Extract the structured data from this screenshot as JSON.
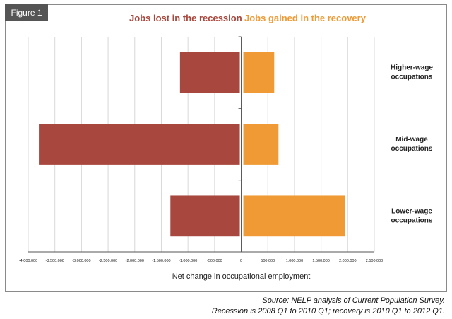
{
  "figure_label": "Figure 1",
  "legend": {
    "loss_label": "Jobs lost in the recession",
    "gain_label": "Jobs gained in the recovery"
  },
  "source_lines": [
    "Source: NELP analysis of Current Population Survey.",
    "Recession is 2008 Q1 to 2010 Q1; recovery is 2010 Q1 to 2012 Q1."
  ],
  "colors": {
    "loss": "#a8473d",
    "gain": "#ef9a34",
    "loss_text": "#a8473d",
    "gain_text": "#ef9a34",
    "grid": "#d8d8d8",
    "axis": "#555555",
    "tab": "#555555"
  },
  "chart_data": {
    "type": "bar",
    "orientation": "horizontal",
    "xlabel": "Net change in occupational employment",
    "xlim": [
      -4000000,
      2500000
    ],
    "xticks": [
      -4000000,
      -3500000,
      -3000000,
      -2500000,
      -2000000,
      -1500000,
      -1000000,
      -500000,
      0,
      500000,
      1000000,
      1500000,
      2000000,
      2500000
    ],
    "xtick_labels": [
      "-4,000,000",
      "-3,500,000",
      "-3,000,000",
      "-2,500,000",
      "-2,000,000",
      "-1,500,000",
      "-1,000,000",
      "-500,000",
      "0",
      "500,000",
      "1,000,000",
      "1,500,000",
      "2,000,000",
      "2,500,000"
    ],
    "categories": [
      [
        "Higher-wage",
        "occupations"
      ],
      [
        "Mid-wage",
        "occupations"
      ],
      [
        "Lower-wage",
        "occupations"
      ]
    ],
    "series": [
      {
        "name": "Jobs lost in the recession",
        "values": [
          -1150000,
          -3800000,
          -1330000
        ]
      },
      {
        "name": "Jobs gained in the recovery",
        "values": [
          620000,
          700000,
          1950000
        ]
      }
    ],
    "grid": true,
    "legend_position": "top-center"
  }
}
